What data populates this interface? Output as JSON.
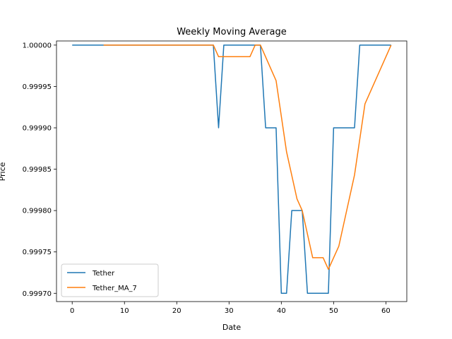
{
  "chart_data": {
    "type": "line",
    "title": "Weekly Moving Average",
    "xlabel": "Date",
    "ylabel": "Price",
    "xlim": [
      -3,
      64
    ],
    "ylim": [
      0.99969,
      1.000005
    ],
    "xticks": [
      0,
      10,
      20,
      30,
      40,
      50,
      60
    ],
    "yticks": [
      0.9997,
      0.99975,
      0.9998,
      0.99985,
      0.9999,
      0.99995,
      1.0
    ],
    "ytick_labels": [
      "0.99970",
      "0.99975",
      "0.99980",
      "0.99985",
      "0.99990",
      "0.99995",
      "1.00000"
    ],
    "grid": false,
    "legend": "lower-left",
    "series": [
      {
        "name": "Tether",
        "color": "#1f77b4",
        "points": [
          [
            0,
            1.0
          ],
          [
            27,
            1.0
          ],
          [
            28,
            0.9999
          ],
          [
            29,
            1.0
          ],
          [
            36,
            1.0
          ],
          [
            37,
            0.9999
          ],
          [
            39,
            0.9999
          ],
          [
            40,
            0.9997
          ],
          [
            41,
            0.9997
          ],
          [
            42,
            0.9998
          ],
          [
            44,
            0.9998
          ],
          [
            45,
            0.9997
          ],
          [
            49,
            0.9997
          ],
          [
            50,
            0.9999
          ],
          [
            54,
            0.9999
          ],
          [
            55,
            1.0
          ],
          [
            61,
            1.0
          ]
        ]
      },
      {
        "name": "Tether_MA_7",
        "color": "#ff7f0e",
        "points": [
          [
            6,
            1.0
          ],
          [
            27,
            1.0
          ],
          [
            28,
            0.999986
          ],
          [
            34,
            0.999986
          ],
          [
            35,
            1.0
          ],
          [
            36,
            1.0
          ],
          [
            39,
            0.999957
          ],
          [
            41,
            0.999871
          ],
          [
            43,
            0.999814
          ],
          [
            44,
            0.9998
          ],
          [
            46,
            0.999743
          ],
          [
            48,
            0.999743
          ],
          [
            49,
            0.999729
          ],
          [
            51,
            0.999757
          ],
          [
            54,
            0.999843
          ],
          [
            56,
            0.999929
          ],
          [
            61,
            1.0
          ]
        ]
      }
    ]
  }
}
